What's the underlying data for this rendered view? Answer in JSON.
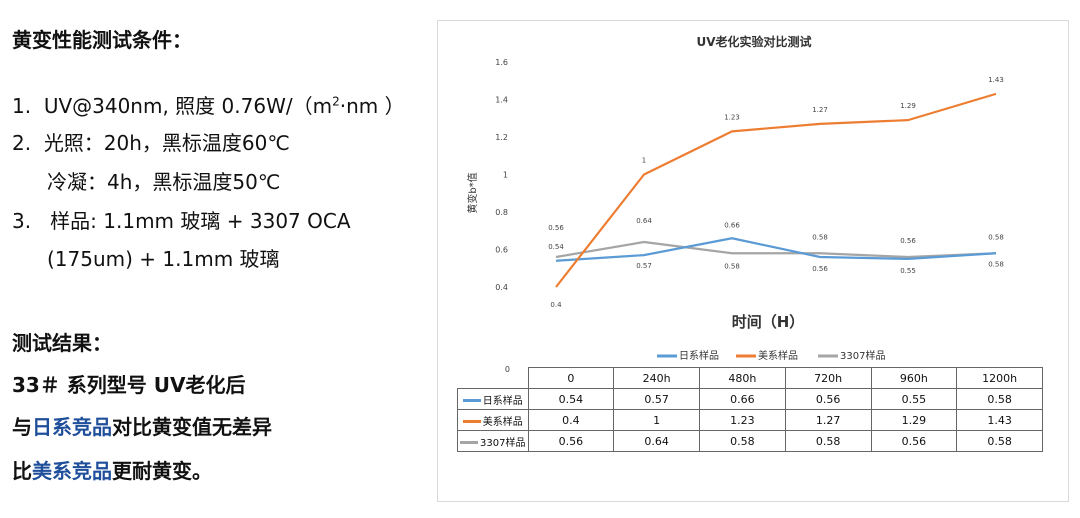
{
  "left": {
    "conditions_title": "黄变性能测试条件：",
    "line1_num": "1.",
    "line1_text": "UV@340nm, 照度  0.76W/（m",
    "line1_sup": "2",
    "line1_tail": "·nm ）",
    "line2_num": "2.",
    "line2_text": "光照：20h，黑标温度60℃",
    "line2b_text": "冷凝：4h，黑标温度50℃",
    "line3_num": "3.",
    "line3_text": "样品: 1.1mm 玻璃 + 3307 OCA",
    "line3b_text": "(175um) + 1.1mm  玻璃",
    "results_title": "测试结果：",
    "result1": "33＃ 系列型号 UV老化后",
    "result2_pre": "与",
    "result2_hl": "日系竞品",
    "result2_post": "对比黄变值无差异",
    "result3_pre": "比",
    "result3_hl": "美系竞品",
    "result3_post": "更耐黄变。"
  },
  "chart_data": {
    "type": "line",
    "title": "UV老化实验对比测试",
    "xlabel": "时间（H）",
    "ylabel": "黄变b*值",
    "categories": [
      "0",
      "240h",
      "480h",
      "720h",
      "960h",
      "1200h"
    ],
    "ylim": [
      0.4,
      1.6
    ],
    "yticks": [
      "0.4",
      "0.6",
      "0.8",
      "1",
      "1.2",
      "1.4",
      "1.6"
    ],
    "y_floor_label": "0",
    "grid": false,
    "legend": "bottom",
    "series": [
      {
        "name": "日系样品",
        "color": "#5b9bd5",
        "values": [
          0.54,
          0.57,
          0.66,
          0.56,
          0.55,
          0.58
        ],
        "labels": [
          "0.54",
          "0.57",
          "0.66",
          "0.56",
          "0.55",
          "0.58"
        ]
      },
      {
        "name": "美系样品",
        "color": "#ed7d31",
        "values": [
          0.4,
          1,
          1.23,
          1.27,
          1.29,
          1.43
        ],
        "labels": [
          "0.4",
          "1",
          "1.23",
          "1.27",
          "1.29",
          "1.43"
        ]
      },
      {
        "name": "3307样品",
        "color": "#a5a5a5",
        "values": [
          0.56,
          0.64,
          0.58,
          0.58,
          0.56,
          0.58
        ],
        "labels": [
          "0.56",
          "0.64",
          "0.58",
          "0.58",
          "0.56",
          "0.58"
        ]
      }
    ]
  }
}
